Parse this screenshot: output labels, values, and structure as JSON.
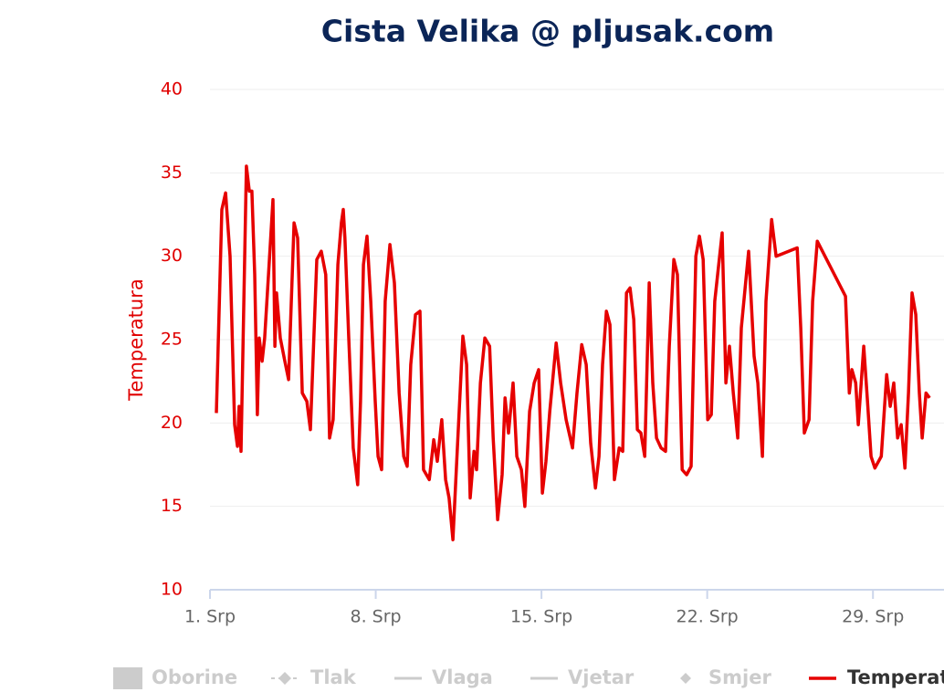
{
  "chart_data": {
    "type": "line",
    "title": "Cista Velika @ pljusak.com",
    "y_label": "Temperatura",
    "x": [
      1.27,
      1.5,
      1.66,
      1.85,
      2.04,
      2.16,
      2.23,
      2.31,
      2.43,
      2.54,
      2.66,
      2.77,
      2.89,
      3.0,
      3.08,
      3.2,
      3.31,
      3.47,
      3.66,
      3.74,
      3.81,
      3.97,
      4.16,
      4.32,
      4.55,
      4.7,
      4.9,
      5.09,
      5.24,
      5.51,
      5.7,
      5.89,
      6.05,
      6.2,
      6.4,
      6.55,
      6.63,
      6.7,
      6.86,
      7.05,
      7.24,
      7.36,
      7.48,
      7.63,
      7.79,
      7.98,
      8.1,
      8.25,
      8.4,
      8.6,
      8.79,
      8.99,
      9.18,
      9.33,
      9.48,
      9.68,
      9.87,
      10.02,
      10.26,
      10.45,
      10.6,
      10.79,
      10.95,
      11.1,
      11.26,
      11.41,
      11.68,
      11.84,
      11.99,
      12.15,
      12.26,
      12.42,
      12.61,
      12.81,
      12.96,
      13.15,
      13.34,
      13.46,
      13.61,
      13.8,
      13.96,
      14.15,
      14.3,
      14.5,
      14.69,
      14.88,
      15.04,
      15.19,
      15.35,
      15.62,
      15.81,
      16.04,
      16.31,
      16.5,
      16.7,
      16.89,
      17.08,
      17.28,
      17.43,
      17.58,
      17.74,
      17.89,
      18.08,
      18.28,
      18.43,
      18.59,
      18.74,
      18.9,
      19.05,
      19.2,
      19.36,
      19.55,
      19.7,
      19.86,
      20.05,
      20.24,
      20.4,
      20.59,
      20.74,
      20.94,
      21.13,
      21.32,
      21.52,
      21.67,
      21.83,
      22.02,
      22.17,
      22.32,
      22.63,
      22.79,
      22.94,
      23.1,
      23.29,
      23.44,
      23.75,
      23.98,
      24.14,
      24.33,
      24.48,
      24.72,
      24.91,
      25.8,
      25.95,
      26.1,
      26.3,
      26.45,
      26.65,
      27.84,
      28.0,
      28.11,
      28.27,
      28.38,
      28.61,
      28.77,
      28.92,
      29.08,
      29.35,
      29.58,
      29.73,
      29.88,
      30.04,
      30.19,
      30.35,
      30.5,
      30.65,
      30.81,
      30.96,
      31.08,
      31.24,
      31.39
    ],
    "series": [
      {
        "name": "Temperatura",
        "color": "#e60000",
        "values": [
          20.6,
          32.8,
          33.8,
          30.0,
          19.9,
          18.6,
          21.0,
          18.3,
          27.3,
          35.4,
          33.9,
          33.9,
          28.9,
          20.5,
          25.1,
          23.7,
          25.1,
          28.9,
          33.4,
          24.6,
          27.8,
          25.1,
          23.7,
          22.6,
          32.0,
          31.1,
          21.8,
          21.3,
          19.6,
          29.8,
          30.3,
          28.9,
          19.1,
          20.2,
          29.5,
          32.0,
          32.8,
          31.1,
          25.1,
          18.5,
          16.3,
          21.3,
          29.5,
          31.2,
          27.3,
          21.3,
          18.0,
          17.2,
          27.3,
          30.7,
          28.4,
          21.8,
          18.0,
          17.4,
          23.5,
          26.5,
          26.7,
          17.2,
          16.6,
          19.0,
          17.7,
          20.2,
          16.6,
          15.5,
          13.0,
          17.4,
          25.2,
          23.5,
          15.5,
          18.3,
          17.2,
          22.4,
          25.1,
          24.6,
          19.1,
          14.2,
          16.9,
          21.5,
          19.4,
          22.4,
          18.0,
          17.2,
          15.0,
          20.7,
          22.4,
          23.2,
          15.8,
          17.7,
          20.7,
          24.8,
          22.4,
          20.2,
          18.5,
          21.8,
          24.7,
          23.5,
          18.8,
          16.1,
          18.0,
          23.5,
          26.7,
          25.9,
          16.6,
          18.5,
          18.3,
          27.8,
          28.1,
          26.2,
          19.6,
          19.4,
          18.0,
          28.4,
          22.4,
          19.1,
          18.5,
          18.3,
          24.6,
          29.8,
          28.9,
          17.2,
          16.9,
          17.4,
          30.0,
          31.2,
          29.8,
          20.2,
          20.5,
          27.3,
          31.4,
          22.4,
          24.6,
          21.8,
          19.1,
          25.7,
          30.3,
          24.0,
          22.4,
          18.0,
          27.3,
          32.2,
          30.0,
          30.5,
          25.7,
          19.4,
          20.2,
          27.3,
          30.9,
          27.6,
          21.8,
          23.2,
          22.4,
          19.9,
          24.6,
          21.3,
          18.0,
          17.3,
          18.0,
          22.9,
          21.0,
          22.4,
          19.1,
          19.9,
          17.3,
          21.8,
          27.8,
          26.5,
          21.8,
          19.1,
          21.8,
          21.5
        ]
      }
    ],
    "legend": [
      "Oborine",
      "Tlak",
      "Vlaga",
      "Vjetar",
      "Smjer"
    ],
    "xlim": [
      1,
      32
    ],
    "xticks": [
      {
        "value": 1,
        "label": "1. Srp"
      },
      {
        "value": 8,
        "label": "8. Srp"
      },
      {
        "value": 15,
        "label": "15. Srp"
      },
      {
        "value": 22,
        "label": "22. Srp"
      },
      {
        "value": 29,
        "label": "29. Srp"
      }
    ],
    "ylim": [
      10,
      40
    ],
    "yticks": [
      10,
      15,
      20,
      25,
      30,
      35,
      40
    ],
    "grid": true
  }
}
